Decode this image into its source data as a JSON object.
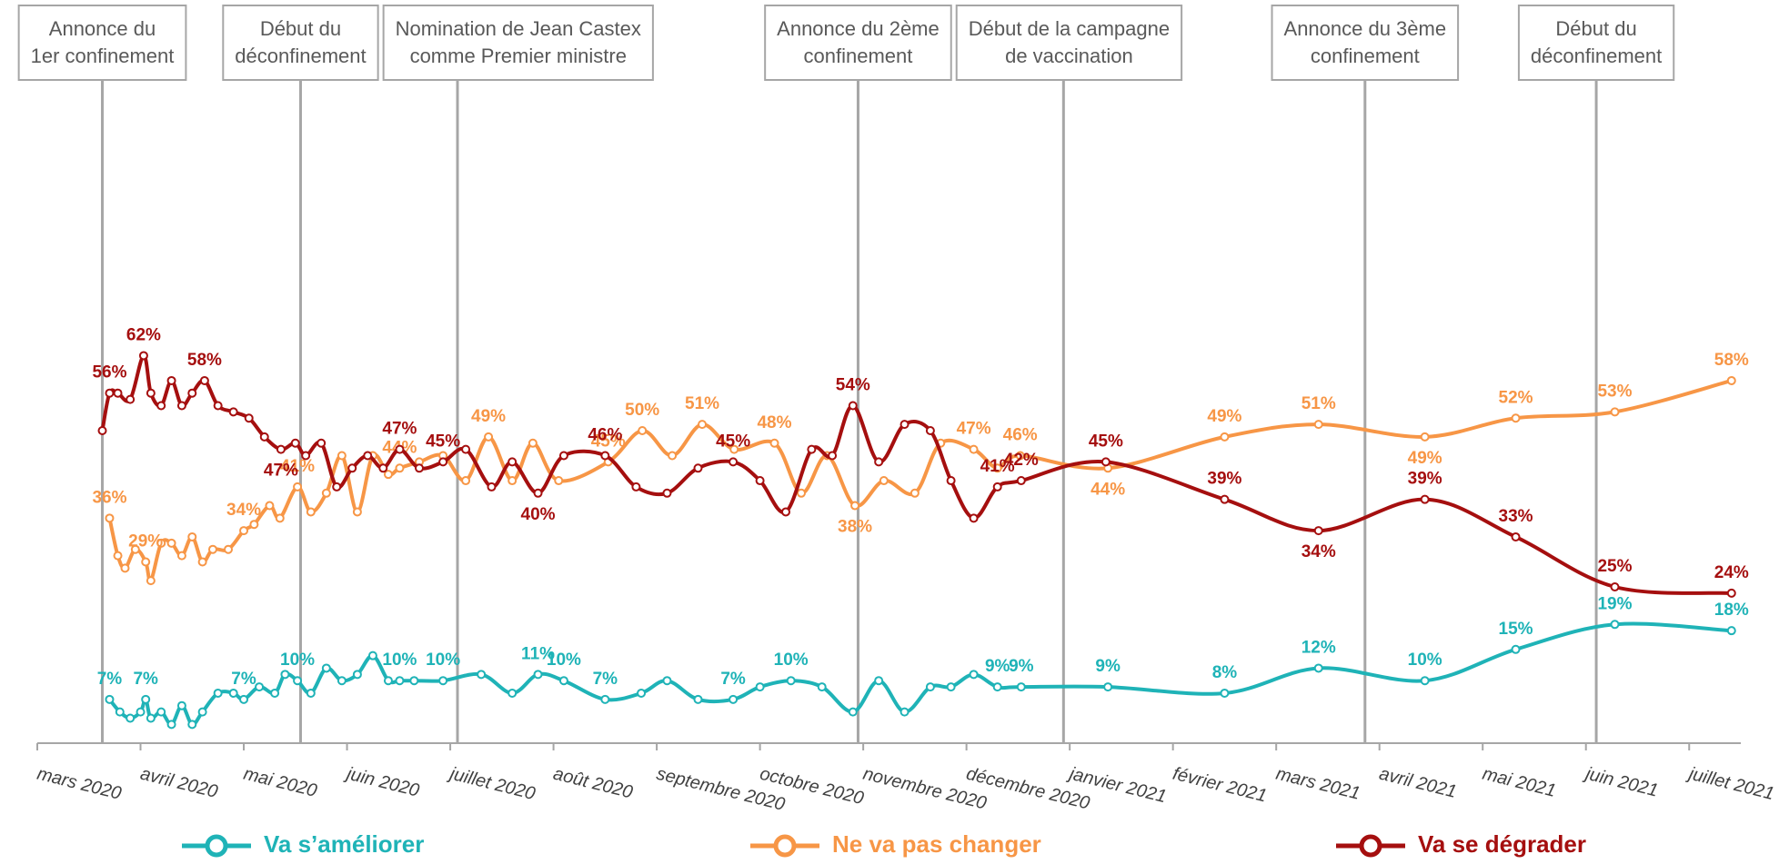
{
  "chart_data": {
    "type": "line",
    "xlim": [
      0,
      16.5
    ],
    "ylim": [
      0,
      100
    ],
    "xticks": [
      {
        "value": 0,
        "label": "mars 2020"
      },
      {
        "value": 1,
        "label": "avril 2020"
      },
      {
        "value": 2,
        "label": "mai 2020"
      },
      {
        "value": 3,
        "label": "juin 2020"
      },
      {
        "value": 4,
        "label": "juillet 2020"
      },
      {
        "value": 5,
        "label": "août 2020"
      },
      {
        "value": 6,
        "label": "septembre 2020"
      },
      {
        "value": 7,
        "label": "octobre 2020"
      },
      {
        "value": 8,
        "label": "novembre 2020"
      },
      {
        "value": 9,
        "label": "décembre 2020"
      },
      {
        "value": 10,
        "label": "janvier 2021"
      },
      {
        "value": 11,
        "label": "février 2021"
      },
      {
        "value": 12,
        "label": "mars 2021"
      },
      {
        "value": 13,
        "label": "avril 2021"
      },
      {
        "value": 14,
        "label": "mai 2021"
      },
      {
        "value": 15,
        "label": "juin 2021"
      },
      {
        "value": 16,
        "label": "juillet 2021"
      }
    ],
    "legend": "bottom",
    "annotations": [
      {
        "lines": [
          "Annonce du",
          "1er confinement"
        ],
        "x": 0.63
      },
      {
        "lines": [
          "Début du",
          "déconfinement"
        ],
        "x": 2.55
      },
      {
        "lines": [
          "Nomination de Jean Castex",
          "comme Premier ministre"
        ],
        "x": 4.07
      },
      {
        "lines": [
          "Annonce du 2ème",
          "confinement"
        ],
        "x": 7.95
      },
      {
        "lines": [
          "Début de la campagne",
          "de vaccination"
        ],
        "x": 9.94
      },
      {
        "lines": [
          "Annonce du 3ème",
          "confinement"
        ],
        "x": 12.86
      },
      {
        "lines": [
          "Début du",
          "déconfinement"
        ],
        "x": 15.1
      }
    ],
    "series": [
      {
        "name": "Va s’améliorer",
        "color": "#1fb3b7",
        "x": [
          0.7,
          0.8,
          0.9,
          1.0,
          1.05,
          1.1,
          1.2,
          1.3,
          1.4,
          1.5,
          1.6,
          1.75,
          1.9,
          2.0,
          2.15,
          2.3,
          2.4,
          2.52,
          2.65,
          2.8,
          2.95,
          3.1,
          3.25,
          3.4,
          3.51,
          3.65,
          3.93,
          4.3,
          4.6,
          4.85,
          5.1,
          5.5,
          5.85,
          6.1,
          6.4,
          6.74,
          7.0,
          7.3,
          7.6,
          7.9,
          8.15,
          8.4,
          8.65,
          8.85,
          9.07,
          9.3,
          9.53,
          10.37,
          11.5,
          12.41,
          13.44,
          14.32,
          15.28,
          16.41
        ],
        "values": [
          7,
          5,
          4,
          5,
          7,
          4,
          5,
          3,
          6,
          3,
          5,
          8,
          8,
          7,
          9,
          8,
          11,
          10,
          8,
          12,
          10,
          11,
          14,
          10,
          10,
          10,
          10,
          11,
          8,
          11,
          10,
          7,
          8,
          10,
          7,
          7,
          9,
          10,
          9,
          5,
          10,
          5,
          9,
          9,
          11,
          9,
          9,
          9,
          8,
          12,
          10,
          15,
          19,
          18
        ],
        "value_labels": [
          "7%",
          null,
          null,
          null,
          "7%",
          null,
          null,
          null,
          null,
          null,
          null,
          null,
          null,
          "7%",
          null,
          null,
          null,
          "10%",
          null,
          null,
          null,
          null,
          null,
          null,
          "10%",
          null,
          "10%",
          null,
          null,
          "11%",
          "10%",
          "7%",
          null,
          null,
          null,
          "7%",
          null,
          "10%",
          null,
          null,
          null,
          null,
          null,
          null,
          null,
          "9%",
          "9%",
          "9%",
          "8%",
          "12%",
          "10%",
          "15%",
          "19%",
          "18%"
        ]
      },
      {
        "name": "Ne va pas changer",
        "color": "#f79646",
        "x": [
          0.7,
          0.78,
          0.85,
          0.95,
          1.05,
          1.1,
          1.2,
          1.3,
          1.4,
          1.5,
          1.6,
          1.7,
          1.85,
          2.0,
          2.1,
          2.25,
          2.35,
          2.52,
          2.65,
          2.8,
          2.95,
          3.1,
          3.25,
          3.4,
          3.51,
          3.7,
          3.93,
          4.15,
          4.37,
          4.6,
          4.8,
          5.05,
          5.53,
          5.86,
          6.15,
          6.44,
          6.75,
          7.14,
          7.4,
          7.65,
          7.92,
          8.2,
          8.5,
          8.75,
          9.07,
          9.3,
          9.52,
          10.37,
          11.5,
          12.41,
          13.44,
          14.32,
          15.28,
          16.41
        ],
        "values": [
          36,
          30,
          28,
          31,
          29,
          26,
          32,
          32,
          30,
          33,
          29,
          31,
          31,
          34,
          35,
          38,
          36,
          41,
          37,
          40,
          46,
          37,
          46,
          43,
          44,
          45,
          46,
          42,
          49,
          42,
          48,
          42,
          45,
          50,
          46,
          51,
          47,
          48,
          40,
          46,
          38,
          42,
          40,
          48,
          47,
          44,
          46,
          44,
          49,
          51,
          49,
          52,
          53,
          58
        ],
        "value_labels": [
          "36%",
          null,
          null,
          null,
          "29%",
          null,
          null,
          null,
          null,
          null,
          null,
          null,
          null,
          "34%",
          null,
          null,
          null,
          "41%",
          null,
          null,
          null,
          null,
          null,
          null,
          "44%",
          null,
          null,
          null,
          "49%",
          null,
          null,
          null,
          "45%",
          "50%",
          null,
          "51%",
          null,
          "48%",
          null,
          null,
          "38%",
          null,
          null,
          null,
          "47%",
          null,
          "46%",
          "44%",
          "49%",
          "51%",
          "49%",
          "52%",
          "53%",
          "58%"
        ]
      },
      {
        "name": "Va se dégrader",
        "color": "#a50f0f",
        "x": [
          0.63,
          0.7,
          0.78,
          0.9,
          1.03,
          1.1,
          1.2,
          1.3,
          1.4,
          1.5,
          1.62,
          1.75,
          1.9,
          2.05,
          2.2,
          2.36,
          2.5,
          2.6,
          2.75,
          2.9,
          3.05,
          3.2,
          3.35,
          3.51,
          3.7,
          3.93,
          4.15,
          4.4,
          4.6,
          4.85,
          5.1,
          5.5,
          5.8,
          6.1,
          6.4,
          6.74,
          7.0,
          7.25,
          7.5,
          7.7,
          7.9,
          8.15,
          8.4,
          8.65,
          8.85,
          9.07,
          9.3,
          9.53,
          10.35,
          11.5,
          12.41,
          13.44,
          14.32,
          15.28,
          16.41
        ],
        "values": [
          50,
          56,
          56,
          55,
          62,
          56,
          54,
          58,
          54,
          56,
          58,
          54,
          53,
          52,
          49,
          47,
          48,
          46,
          48,
          41,
          44,
          46,
          44,
          47,
          44,
          45,
          47,
          41,
          45,
          40,
          46,
          46,
          41,
          40,
          44,
          45,
          42,
          37,
          47,
          46,
          54,
          45,
          51,
          50,
          42,
          36,
          41,
          42,
          45,
          39,
          34,
          39,
          33,
          25,
          24
        ],
        "value_labels": [
          null,
          "56%",
          null,
          null,
          "62%",
          null,
          null,
          null,
          null,
          null,
          "58%",
          null,
          null,
          null,
          null,
          "47%",
          null,
          null,
          null,
          null,
          null,
          null,
          null,
          "47%",
          null,
          "45%",
          null,
          null,
          null,
          "40%",
          null,
          "46%",
          null,
          null,
          null,
          "45%",
          null,
          null,
          null,
          null,
          "54%",
          null,
          null,
          null,
          null,
          null,
          "41%",
          "42%",
          "45%",
          "39%",
          "34%",
          "39%",
          "33%",
          "25%",
          "24%"
        ]
      }
    ]
  }
}
